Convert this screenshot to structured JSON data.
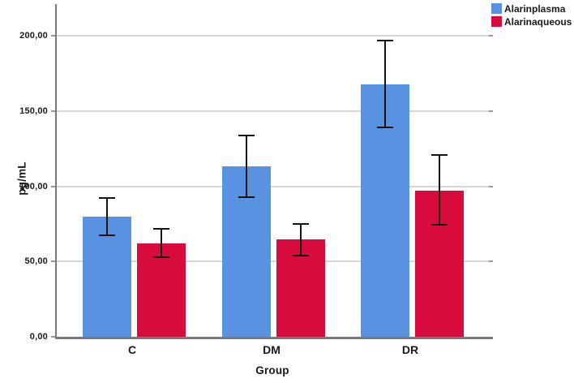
{
  "chart_data": {
    "type": "bar",
    "title": "",
    "xlabel": "Group",
    "ylabel": "pg/mL",
    "categories": [
      "C",
      "DM",
      "DR"
    ],
    "series": [
      {
        "name": "Alarinplasma",
        "color": "#5A92E2",
        "values": [
          80,
          113,
          167.5
        ],
        "error_low": [
          67.5,
          92.5,
          139
        ],
        "error_high": [
          92,
          133.5,
          196.5
        ]
      },
      {
        "name": "Alarinaqueous",
        "color": "#D70B3E",
        "values": [
          62,
          64.5,
          97
        ],
        "error_low": [
          53,
          54,
          74.5
        ],
        "error_high": [
          71.5,
          75,
          120.5
        ]
      }
    ],
    "y_ticks": [
      {
        "label": "0,00",
        "value": 0
      },
      {
        "label": "50,00",
        "value": 50
      },
      {
        "label": "100,00",
        "value": 100
      },
      {
        "label": "150,00",
        "value": 150
      },
      {
        "label": "200,00",
        "value": 200
      }
    ],
    "ylim": [
      0,
      221
    ],
    "grid": true,
    "legend_position": "top-right",
    "error_bars": true,
    "colors": {
      "grid": "#d6d6d6",
      "axis": "#7a7a7a",
      "error_bar": "#141414",
      "text": "#1a1a1a"
    }
  }
}
